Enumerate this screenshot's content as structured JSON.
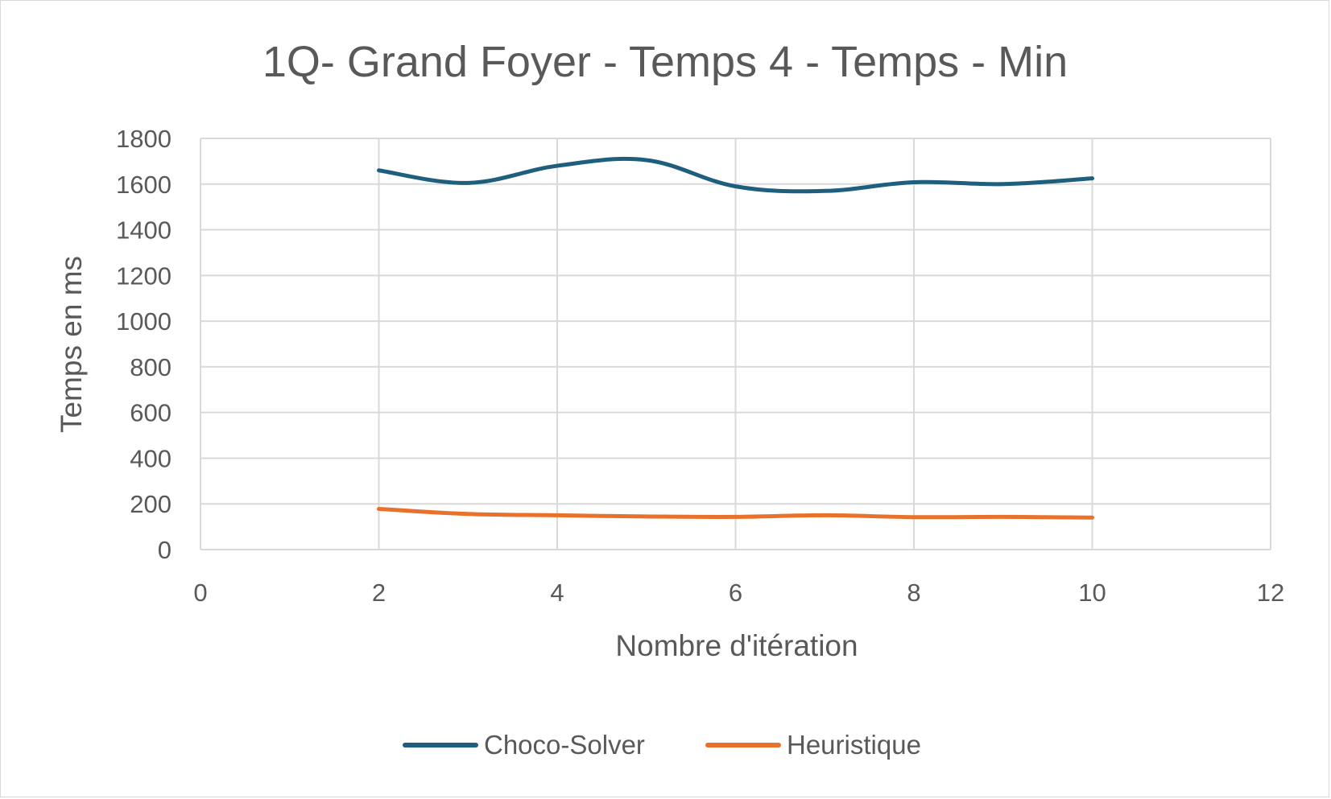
{
  "chart_data": {
    "type": "line",
    "title": "1Q- Grand Foyer - Temps 4 - Temps - Min",
    "xlabel": "Nombre d'itération",
    "ylabel": "Temps en ms",
    "xlim": [
      0,
      12
    ],
    "ylim": [
      0,
      1800
    ],
    "xticks": [
      "0",
      "2",
      "4",
      "6",
      "8",
      "10",
      "12"
    ],
    "yticks": [
      "0",
      "200",
      "400",
      "600",
      "800",
      "1000",
      "1200",
      "1400",
      "1600",
      "1800"
    ],
    "grid": true,
    "smooth": true,
    "legend_position": "bottom",
    "x": [
      2,
      3,
      4,
      5,
      6,
      7,
      8,
      9,
      10
    ],
    "series": [
      {
        "name": "Choco-Solver",
        "color": "#1f5f7e",
        "values": [
          1660,
          1605,
          1680,
          1705,
          1590,
          1570,
          1608,
          1600,
          1625
        ]
      },
      {
        "name": "Heuristique",
        "color": "#e8722c",
        "values": [
          178,
          156,
          150,
          145,
          143,
          150,
          142,
          143,
          140
        ]
      }
    ]
  }
}
